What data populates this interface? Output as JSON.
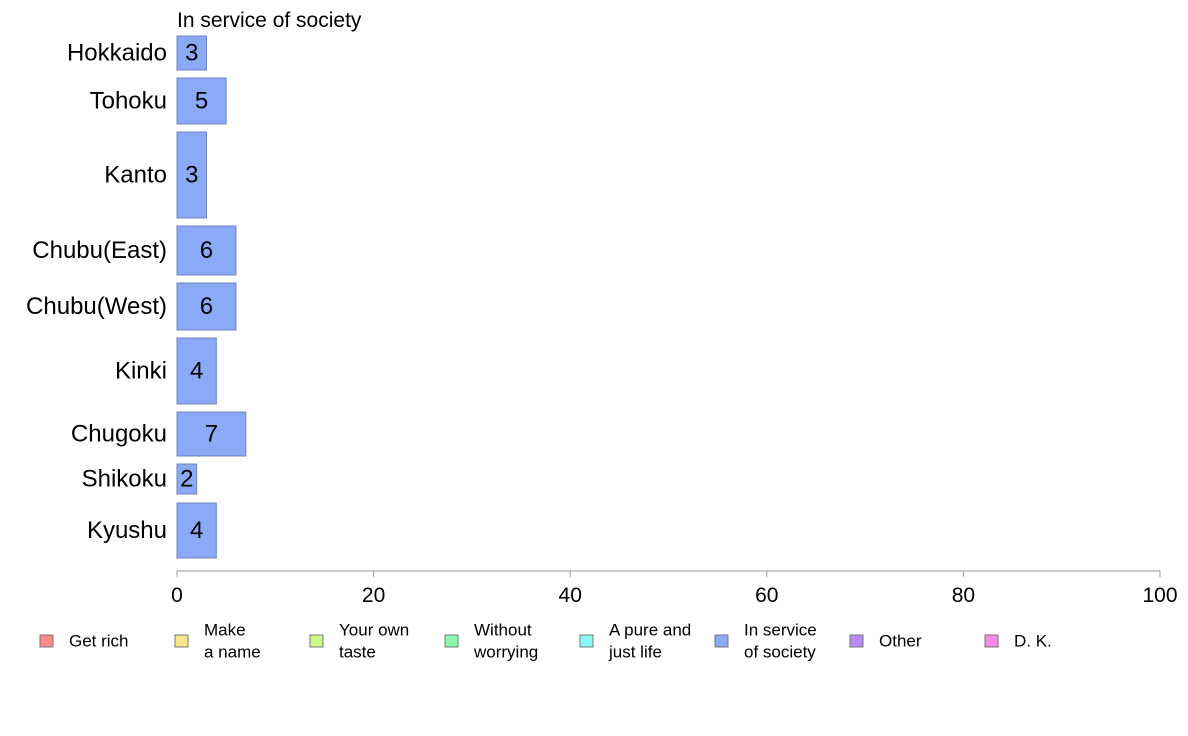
{
  "chart_data": {
    "type": "bar",
    "orientation": "horizontal",
    "title": "In service of society",
    "xlabel": "",
    "ylabel": "",
    "xlim": [
      0,
      100
    ],
    "xticks": [
      0,
      20,
      40,
      60,
      80,
      100
    ],
    "grid": false,
    "legend_position": "bottom",
    "categories": [
      "Hokkaido",
      "Tohoku",
      "Kanto",
      "Chubu(East)",
      "Chubu(West)",
      "Kinki",
      "Chugoku",
      "Shikoku",
      "Kyushu"
    ],
    "values": [
      3,
      5,
      3,
      6,
      6,
      4,
      7,
      2,
      4
    ],
    "bar_color": "#8aaaf8",
    "legend": [
      {
        "label": [
          "Get rich"
        ],
        "color": "#f88a8a"
      },
      {
        "label": [
          "Make",
          "a name"
        ],
        "color": "#f8e88a"
      },
      {
        "label": [
          "Your own",
          "taste"
        ],
        "color": "#ccf88a"
      },
      {
        "label": [
          "Without",
          "worrying"
        ],
        "color": "#8af8aa"
      },
      {
        "label": [
          "A pure and",
          "just life"
        ],
        "color": "#8af8f8"
      },
      {
        "label": [
          "In service",
          "of society"
        ],
        "color": "#8aaaf8"
      },
      {
        "label": [
          "Other"
        ],
        "color": "#b88af8"
      },
      {
        "label": [
          "D. K."
        ],
        "color": "#f88ae8"
      }
    ]
  }
}
